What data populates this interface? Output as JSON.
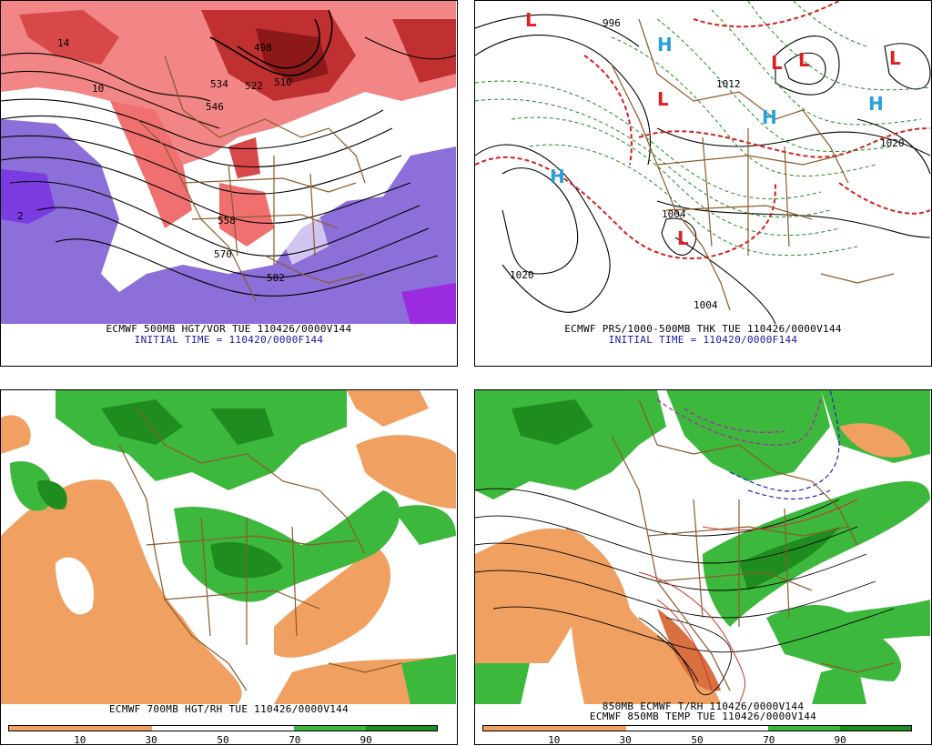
{
  "panels": [
    {
      "caption": "ECMWF 500MB HGT/VOR TUE 110426/0000V144",
      "subcaption": "INITIAL TIME = 110420/0000F144",
      "contour_labels": [
        "534",
        "522",
        "546",
        "558",
        "570",
        "582",
        "498",
        "510",
        "10",
        "14",
        "2"
      ]
    },
    {
      "caption": "ECMWF PRS/1000-500MB THK TUE 110426/0000V144",
      "subcaption": "INITIAL TIME = 110420/0000F144",
      "pressure_centers": [
        "L",
        "L",
        "L",
        "L",
        "L",
        "L",
        "H",
        "H",
        "H",
        "H"
      ],
      "contour_labels": [
        "1020",
        "1020",
        "1004",
        "1004",
        "1012",
        "1020",
        "996"
      ]
    },
    {
      "caption": "ECMWF 700MB HGT/RH TUE 110426/0000V144",
      "colorbar_ticks": [
        "10",
        "30",
        "50",
        "70",
        "90"
      ],
      "colorbar_colors": [
        "#f0a060",
        "#f0a060",
        "#ffffff",
        "#ffffff",
        "#3cb83c",
        "#1e8c1e"
      ]
    },
    {
      "caption": "850MB ECMWF T/RH 110426/0000V144",
      "subcaption": "ECMWF 850MB TEMP TUE 110426/0000V144",
      "colorbar_ticks": [
        "10",
        "30",
        "50",
        "70",
        "90"
      ],
      "colorbar_colors": [
        "#f0a060",
        "#f0a060",
        "#ffffff",
        "#ffffff",
        "#3cb83c",
        "#1e8c1e"
      ]
    }
  ]
}
